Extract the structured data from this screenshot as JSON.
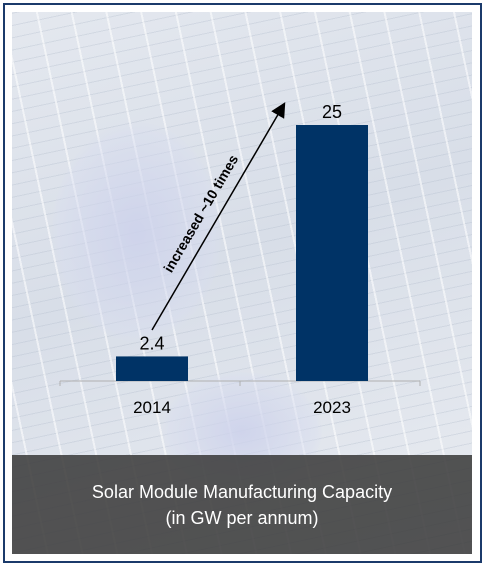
{
  "chart_data": {
    "type": "bar",
    "categories": [
      "2014",
      "2023"
    ],
    "values": [
      2.4,
      25
    ],
    "ylim": [
      0,
      25
    ],
    "annotation": "increased ~10 times",
    "grid": false,
    "legend": "none",
    "bar_color": "#003366"
  },
  "caption": {
    "line1": "Solar Module Manufacturing Capacity",
    "line2": "(in GW per annum)"
  }
}
